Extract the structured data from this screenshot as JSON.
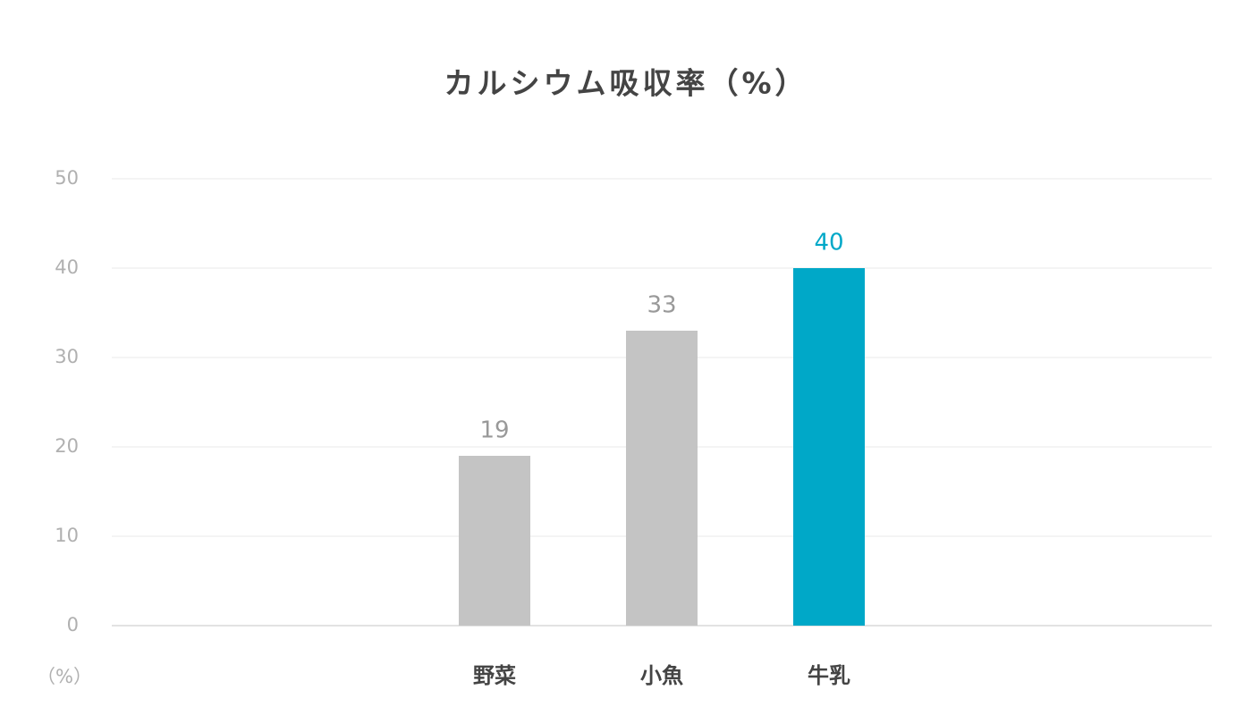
{
  "chart_data": {
    "type": "bar",
    "title": "カルシウム吸収率（%）",
    "ylabel": "（%）",
    "categories": [
      "野菜",
      "小魚",
      "牛乳"
    ],
    "values": [
      19,
      33,
      40
    ],
    "colors": [
      "#c4c4c4",
      "#c4c4c4",
      "#00a8c8"
    ],
    "label_colors": [
      "#999999",
      "#999999",
      "#00a8c8"
    ],
    "ylim": [
      0,
      50
    ],
    "yticks": [
      0,
      10,
      20,
      30,
      40,
      50
    ],
    "grid": true
  }
}
